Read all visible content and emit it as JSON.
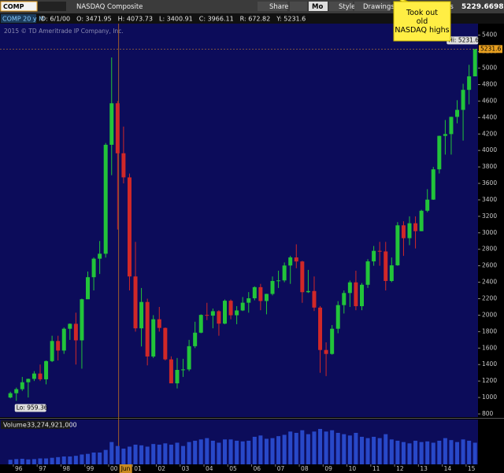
{
  "toolbar": {
    "symbol": "COMP",
    "name": "NASDAQ Composite",
    "buttons": [
      "Share",
      "Mo",
      "Style",
      "Drawings",
      "ns"
    ],
    "last_price": "5229.6698"
  },
  "header": {
    "study": "COMP 20 y M",
    "stats": [
      "D: 6/1/00",
      "O: 3471.95",
      "H: 4073.73",
      "L: 3400.91",
      "C: 3966.11",
      "R: 672.82",
      "Y: 5231.6"
    ]
  },
  "copyright": "2015 © TD Ameritrade IP Company, Inc.",
  "chart_data": {
    "type": "candlestick",
    "annotation": "Took out old NASDAQ highs",
    "hi_label": "Hi: 5231.6",
    "lo_label": "Lo: 959.36",
    "price_bubble": "5231.6",
    "cursor": {
      "value": 2000.42,
      "label": "Jun"
    },
    "up_color": "#22c43a",
    "down_color": "#d02828",
    "xlim": [
      1995.44,
      2015.5
    ],
    "xticks": [
      {
        "value": 1996,
        "label": "96"
      },
      {
        "value": 1997,
        "label": "97"
      },
      {
        "value": 1998,
        "label": "98"
      },
      {
        "value": 1999,
        "label": "99"
      },
      {
        "value": 2000,
        "label": "00"
      },
      {
        "value": 2001,
        "label": "01"
      },
      {
        "value": 2002,
        "label": "02"
      },
      {
        "value": 2003,
        "label": "03"
      },
      {
        "value": 2004,
        "label": "04"
      },
      {
        "value": 2005,
        "label": "05"
      },
      {
        "value": 2006,
        "label": "06"
      },
      {
        "value": 2007,
        "label": "07"
      },
      {
        "value": 2008,
        "label": "08"
      },
      {
        "value": 2009,
        "label": "09"
      },
      {
        "value": 2010,
        "label": "10"
      },
      {
        "value": 2011,
        "label": "11"
      },
      {
        "value": 2012,
        "label": "12"
      },
      {
        "value": 2013,
        "label": "13"
      },
      {
        "value": 2014,
        "label": "14"
      },
      {
        "value": 2015,
        "label": "15"
      }
    ],
    "ylim": [
      800,
      5550
    ],
    "yticks": [
      800,
      1000,
      1200,
      1400,
      1600,
      1800,
      2000,
      2200,
      2400,
      2600,
      2800,
      3000,
      3200,
      3400,
      3600,
      3800,
      4000,
      4200,
      4400,
      4600,
      4800,
      5000,
      5200,
      5400
    ],
    "x": [
      1995.875,
      1996.125,
      1996.375,
      1996.625,
      1996.875,
      1997.125,
      1997.375,
      1997.625,
      1997.875,
      1998.125,
      1998.375,
      1998.625,
      1998.875,
      1999.125,
      1999.375,
      1999.625,
      1999.875,
      2000.125,
      2000.375,
      2000.625,
      2000.875,
      2001.125,
      2001.375,
      2001.625,
      2001.875,
      2002.125,
      2002.375,
      2002.625,
      2002.875,
      2003.125,
      2003.375,
      2003.625,
      2003.875,
      2004.125,
      2004.375,
      2004.625,
      2004.875,
      2005.125,
      2005.375,
      2005.625,
      2005.875,
      2006.125,
      2006.375,
      2006.625,
      2006.875,
      2007.125,
      2007.375,
      2007.625,
      2007.875,
      2008.125,
      2008.375,
      2008.625,
      2008.875,
      2009.125,
      2009.375,
      2009.625,
      2009.875,
      2010.125,
      2010.375,
      2010.625,
      2010.875,
      2011.125,
      2011.375,
      2011.625,
      2011.875,
      2012.125,
      2012.375,
      2012.625,
      2012.875,
      2013.125,
      2013.375,
      2013.625,
      2013.875,
      2014.125,
      2014.375,
      2014.625,
      2014.875,
      2015.125,
      2015.375
    ],
    "open": [
      1000,
      1052,
      1101,
      1185,
      1226,
      1291,
      1221,
      1442,
      1686,
      1570,
      1835,
      1895,
      1694,
      2193,
      2461,
      2686,
      2746,
      4069,
      4573,
      3966,
      3673,
      2470,
      1840,
      2160,
      1498,
      1950,
      1845,
      1463,
      1172,
      1335,
      1341,
      1623,
      1787,
      2003,
      1994,
      2048,
      1897,
      2175,
      1999,
      2057,
      2151,
      2205,
      2340,
      2172,
      2258,
      2415,
      2422,
      2603,
      2701,
      2652,
      2279,
      2293,
      2092,
      1577,
      1529,
      1835,
      2122,
      2269,
      2398,
      2109,
      2369,
      2653,
      2781,
      2774,
      2415,
      2605,
      3091,
      2935,
      3116,
      3020,
      3268,
      3403,
      3771,
      4177,
      4199,
      4408,
      4493,
      4736,
      4900
    ],
    "high": [
      1070,
      1120,
      1250,
      1230,
      1320,
      1400,
      1450,
      1750,
      1750,
      1850,
      1900,
      2030,
      2200,
      2530,
      2700,
      2900,
      4090,
      5130,
      4600,
      4290,
      3720,
      2890,
      2330,
      2200,
      2000,
      2100,
      1850,
      1500,
      1480,
      1470,
      1700,
      1920,
      2010,
      2150,
      2080,
      2060,
      2190,
      2190,
      2110,
      2220,
      2280,
      2350,
      2380,
      2260,
      2470,
      2540,
      2640,
      2720,
      2860,
      2660,
      2550,
      2470,
      2110,
      1670,
      1880,
      2170,
      2300,
      2420,
      2540,
      2390,
      2680,
      2840,
      2890,
      2890,
      2700,
      3130,
      3140,
      3200,
      3200,
      3280,
      3530,
      3800,
      4180,
      4370,
      4410,
      4610,
      4810,
      5040,
      5231.6
    ],
    "low": [
      990,
      959.36,
      1080,
      1000,
      1200,
      1200,
      1160,
      1430,
      1450,
      1530,
      1700,
      1400,
      1350,
      2200,
      2300,
      2500,
      2700,
      3700,
      3040,
      3600,
      2300,
      1800,
      1620,
      1390,
      1480,
      1800,
      1450,
      1200,
      1110,
      1250,
      1320,
      1600,
      1780,
      1940,
      1840,
      1750,
      1890,
      1950,
      1890,
      2050,
      2030,
      2180,
      2060,
      2010,
      2240,
      2330,
      2400,
      2380,
      2570,
      2150,
      2270,
      2050,
      1300,
      1260,
      1520,
      1780,
      2020,
      2100,
      2060,
      2060,
      2330,
      2600,
      2600,
      2300,
      2400,
      2600,
      2720,
      2850,
      2810,
      3020,
      3250,
      3400,
      3720,
      3950,
      3950,
      4330,
      4120,
      4560,
      4900
    ],
    "close": [
      1052,
      1101,
      1185,
      1226,
      1291,
      1221,
      1442,
      1686,
      1570,
      1835,
      1895,
      1694,
      2193,
      2461,
      2686,
      2746,
      4069,
      4573,
      3966,
      3673,
      2470,
      1840,
      2160,
      1498,
      1950,
      1845,
      1463,
      1172,
      1335,
      1341,
      1623,
      1787,
      2003,
      1994,
      2048,
      1897,
      2175,
      1999,
      2057,
      2151,
      2205,
      2340,
      2172,
      2258,
      2415,
      2422,
      2603,
      2701,
      2652,
      2279,
      2293,
      2092,
      1577,
      1529,
      1835,
      2122,
      2269,
      2398,
      2109,
      2369,
      2653,
      2781,
      2774,
      2415,
      2605,
      3091,
      2935,
      3116,
      3020,
      3268,
      3403,
      3771,
      4177,
      4199,
      4408,
      4493,
      4736,
      4900,
      5230
    ],
    "volume_title": "Volume",
    "volume_label": "33,274,921,000",
    "volume_value": 33274921000,
    "vlim": [
      0,
      60000000000.0
    ],
    "volume": [
      7000000000.0,
      8000000000.0,
      8500000000.0,
      7500000000.0,
      8000000000.0,
      9000000000.0,
      9000000000.0,
      10000000000.0,
      11000000000.0,
      12000000000.0,
      12000000000.0,
      13000000000.0,
      15000000000.0,
      16000000000.0,
      18000000000.0,
      18000000000.0,
      22000000000.0,
      34000000000.0,
      28000000000.0,
      24000000000.0,
      27000000000.0,
      30000000000.0,
      29000000000.0,
      27000000000.0,
      31000000000.0,
      30000000000.0,
      32000000000.0,
      30000000000.0,
      33000000000.0,
      28000000000.0,
      34000000000.0,
      36000000000.0,
      38000000000.0,
      40000000000.0,
      36000000000.0,
      33000000000.0,
      38000000000.0,
      38000000000.0,
      36000000000.0,
      35000000000.0,
      36000000000.0,
      42000000000.0,
      44000000000.0,
      39000000000.0,
      40000000000.0,
      43000000000.0,
      45000000000.0,
      50000000000.0,
      48000000000.0,
      52000000000.0,
      46000000000.0,
      50000000000.0,
      54000000000.0,
      50000000000.0,
      52000000000.0,
      48000000000.0,
      46000000000.0,
      44000000000.0,
      48000000000.0,
      42000000000.0,
      40000000000.0,
      42000000000.0,
      40000000000.0,
      46000000000.0,
      38000000000.0,
      36000000000.0,
      34000000000.0,
      32000000000.0,
      36000000000.0,
      34000000000.0,
      35000000000.0,
      33000000000.0,
      36000000000.0,
      40000000000.0,
      37000000000.0,
      34000000000.0,
      38000000000.0,
      36000000000.0,
      33000000000.0
    ]
  }
}
